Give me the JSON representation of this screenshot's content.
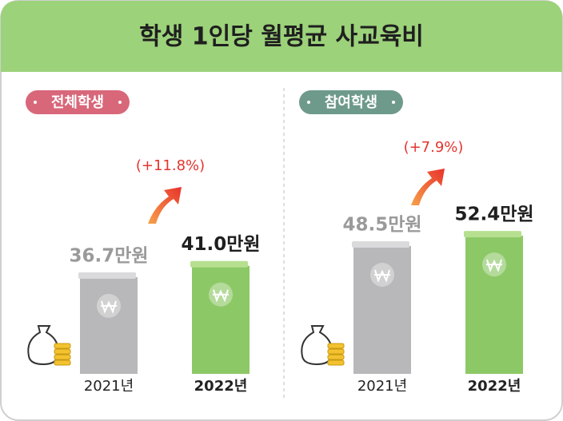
{
  "title": "학생 1인당 월평균 사교육비",
  "chart_data": [
    {
      "type": "bar",
      "label": "전체학생",
      "categories": [
        "2021년",
        "2022년"
      ],
      "values": [
        36.7,
        41.0
      ],
      "value_labels": [
        "36.7만원",
        "41.0만원"
      ],
      "colors": [
        "#b8b8bb",
        "#8dc866"
      ],
      "annotation": "(+11.8%)"
    },
    {
      "type": "bar",
      "label": "참여학생",
      "categories": [
        "2021년",
        "2022년"
      ],
      "values": [
        48.5,
        52.4
      ],
      "value_labels": [
        "48.5만원",
        "52.4만원"
      ],
      "colors": [
        "#b8b8bb",
        "#8dc866"
      ],
      "annotation": "(+7.9%)"
    }
  ]
}
